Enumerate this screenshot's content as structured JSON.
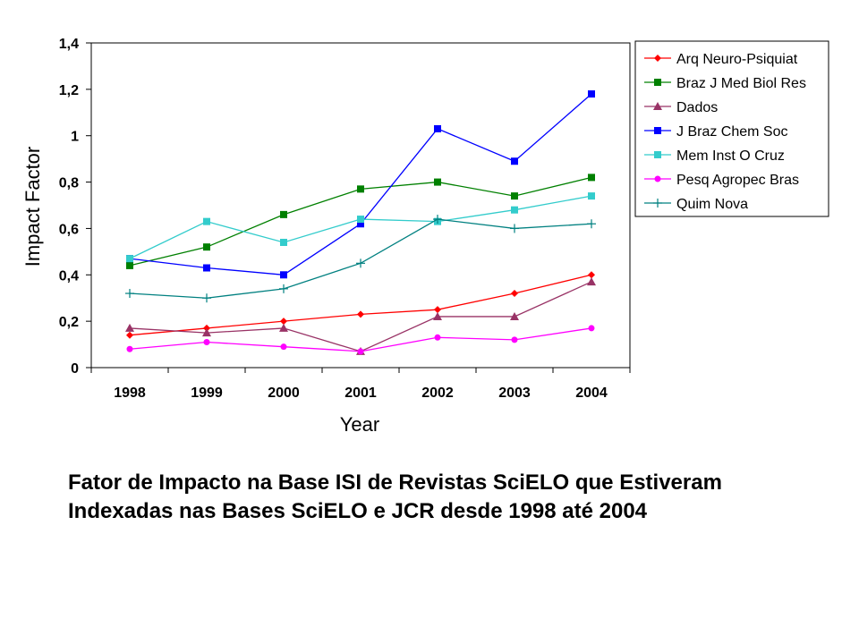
{
  "chart_data": {
    "type": "line",
    "title": "",
    "xlabel": "Year",
    "ylabel": "Impact Factor",
    "categories": [
      "1998",
      "1999",
      "2000",
      "2001",
      "2002",
      "2003",
      "2004"
    ],
    "y_ticks": [
      "0",
      "0,2",
      "0,4",
      "0,6",
      "0,8",
      "1",
      "1,2",
      "1,4"
    ],
    "ylim": [
      0,
      1.4
    ],
    "grid": false,
    "legend_position": "right",
    "series": [
      {
        "name": "Arq Neuro-Psiquiat",
        "color": "#ff0000",
        "marker": "diamond",
        "values": [
          0.14,
          0.17,
          0.2,
          0.23,
          0.25,
          0.32,
          0.4
        ]
      },
      {
        "name": "Braz J Med Biol Res",
        "color": "#008000",
        "marker": "square",
        "values": [
          0.44,
          0.52,
          0.66,
          0.77,
          0.8,
          0.74,
          0.82
        ]
      },
      {
        "name": "Dados",
        "color": "#993366",
        "marker": "triangle",
        "values": [
          0.17,
          0.15,
          0.17,
          0.07,
          0.22,
          0.22,
          0.37
        ]
      },
      {
        "name": "J Braz Chem Soc",
        "color": "#0000ff",
        "marker": "square",
        "values": [
          0.47,
          0.43,
          0.4,
          0.62,
          1.03,
          0.89,
          1.18
        ]
      },
      {
        "name": "Mem Inst O Cruz",
        "color": "#33cccc",
        "marker": "square",
        "values": [
          0.47,
          0.63,
          0.54,
          0.64,
          0.63,
          0.68,
          0.74
        ]
      },
      {
        "name": "Pesq Agropec Bras",
        "color": "#ff00ff",
        "marker": "circle",
        "values": [
          0.08,
          0.11,
          0.09,
          0.07,
          0.13,
          0.12,
          0.17
        ]
      },
      {
        "name": "Quim Nova",
        "color": "#008080",
        "marker": "plus",
        "values": [
          0.32,
          0.3,
          0.34,
          0.45,
          0.64,
          0.6,
          0.62
        ]
      }
    ]
  },
  "caption": {
    "line1": "Fator de Impacto na Base ISI de Revistas SciELO que Estiveram",
    "line2": "Indexadas nas Bases SciELO e JCR desde 1998 até 2004"
  }
}
